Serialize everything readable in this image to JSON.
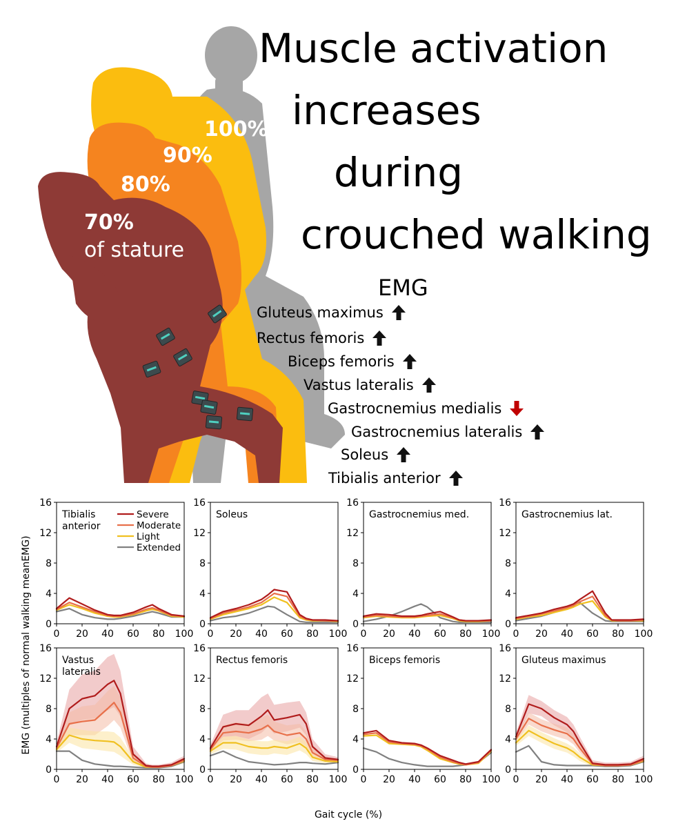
{
  "title": {
    "lines": [
      "Muscle activation",
      "increases",
      "during",
      "crouched walking"
    ]
  },
  "statures": [
    {
      "pct": "100%"
    },
    {
      "pct": "90%"
    },
    {
      "pct": "80%"
    },
    {
      "pct": "70%",
      "sub": "of stature"
    }
  ],
  "emg_panel": {
    "heading": "EMG",
    "muscles": [
      {
        "name": "Gluteus maximus",
        "direction": "up"
      },
      {
        "name": "Rectus femoris",
        "direction": "up"
      },
      {
        "name": "Biceps femoris",
        "direction": "up"
      },
      {
        "name": "Vastus lateralis",
        "direction": "up"
      },
      {
        "name": "Gastrocnemius medialis",
        "direction": "down"
      },
      {
        "name": "Gastrocnemius lateralis",
        "direction": "up"
      },
      {
        "name": "Soleus",
        "direction": "up"
      },
      {
        "name": "Tibialis anterior",
        "direction": "up"
      }
    ]
  },
  "colors": {
    "severe": "#b01c1c",
    "moderate": "#e8704a",
    "light": "#f0c020",
    "extended": "#808080",
    "silhouette_100": "#a6a6a6",
    "silhouette_90": "#fbbd0f",
    "silhouette_80": "#f5841f",
    "silhouette_70": "#8e3a36",
    "arrow_up": "#111111",
    "arrow_down": "#c00000"
  },
  "chart_data": {
    "type": "line",
    "xlabel": "Gait cycle (%)",
    "ylabel": "EMG (multiples of normal walking meanEMG)",
    "xlim": [
      0,
      100
    ],
    "ylim": [
      0,
      16
    ],
    "xticks": [
      "0",
      "20",
      "40",
      "60",
      "80",
      "100"
    ],
    "yticks": [
      "0",
      "4",
      "8",
      "12",
      "16"
    ],
    "legend": [
      "Severe",
      "Moderate",
      "Light",
      "Extended"
    ],
    "x": [
      0,
      10,
      20,
      30,
      40,
      45,
      50,
      60,
      70,
      75,
      80,
      90,
      100
    ],
    "panels": [
      {
        "title": "Tibialis anterior",
        "title_lines": [
          "Tibialis",
          "anterior"
        ],
        "series": [
          {
            "name": "Severe",
            "values": [
              2.0,
              3.4,
              2.6,
              1.8,
              1.2,
              1.1,
              1.1,
              1.5,
              2.2,
              2.5,
              2.0,
              1.2,
              1.0
            ]
          },
          {
            "name": "Moderate",
            "values": [
              1.9,
              2.8,
              2.2,
              1.6,
              1.1,
              1.0,
              1.0,
              1.3,
              1.9,
              2.1,
              1.8,
              1.1,
              1.0
            ]
          },
          {
            "name": "Light",
            "values": [
              1.8,
              2.5,
              2.0,
              1.4,
              1.0,
              0.9,
              0.9,
              1.2,
              1.7,
              1.9,
              1.7,
              1.0,
              0.9
            ]
          },
          {
            "name": "Extended",
            "values": [
              1.6,
              2.0,
              1.2,
              0.8,
              0.6,
              0.6,
              0.7,
              1.0,
              1.4,
              1.6,
              1.4,
              0.9,
              0.9
            ]
          }
        ]
      },
      {
        "title": "Soleus",
        "title_lines": [
          "Soleus"
        ],
        "series": [
          {
            "name": "Severe",
            "values": [
              0.8,
              1.6,
              2.0,
              2.5,
              3.2,
              3.8,
              4.5,
              4.2,
              1.2,
              0.7,
              0.5,
              0.5,
              0.4
            ]
          },
          {
            "name": "Moderate",
            "values": [
              0.7,
              1.4,
              1.8,
              2.2,
              2.8,
              3.4,
              4.0,
              3.6,
              1.0,
              0.6,
              0.5,
              0.4,
              0.4
            ]
          },
          {
            "name": "Light",
            "values": [
              0.6,
              1.2,
              1.6,
              2.0,
              2.5,
              3.0,
              3.5,
              2.8,
              0.8,
              0.5,
              0.4,
              0.4,
              0.3
            ]
          },
          {
            "name": "Extended",
            "values": [
              0.4,
              0.8,
              1.0,
              1.4,
              2.0,
              2.3,
              2.2,
              1.2,
              0.3,
              0.2,
              0.2,
              0.2,
              0.2
            ]
          }
        ]
      },
      {
        "title": "Gastrocnemius med.",
        "title_lines": [
          "Gastrocnemius med."
        ],
        "series": [
          {
            "name": "Severe",
            "values": [
              1.0,
              1.3,
              1.2,
              1.0,
              1.0,
              1.1,
              1.3,
              1.6,
              0.9,
              0.5,
              0.4,
              0.4,
              0.5
            ]
          },
          {
            "name": "Moderate",
            "values": [
              0.9,
              1.1,
              1.0,
              0.9,
              0.9,
              1.0,
              1.1,
              1.3,
              0.8,
              0.5,
              0.4,
              0.4,
              0.4
            ]
          },
          {
            "name": "Light",
            "values": [
              0.8,
              1.0,
              0.9,
              0.8,
              0.8,
              0.9,
              1.0,
              1.1,
              0.7,
              0.4,
              0.3,
              0.3,
              0.4
            ]
          },
          {
            "name": "Extended",
            "values": [
              0.3,
              0.6,
              1.0,
              1.6,
              2.3,
              2.6,
              2.2,
              0.8,
              0.3,
              0.2,
              0.2,
              0.2,
              0.2
            ]
          }
        ]
      },
      {
        "title": "Gastrocnemius lat.",
        "title_lines": [
          "Gastrocnemius lat."
        ],
        "series": [
          {
            "name": "Severe",
            "values": [
              0.8,
              1.1,
              1.4,
              1.9,
              2.3,
              2.6,
              3.2,
              4.3,
              1.4,
              0.5,
              0.5,
              0.5,
              0.6
            ]
          },
          {
            "name": "Moderate",
            "values": [
              0.7,
              1.0,
              1.3,
              1.7,
              2.1,
              2.4,
              2.9,
              3.6,
              1.1,
              0.5,
              0.4,
              0.4,
              0.5
            ]
          },
          {
            "name": "Light",
            "values": [
              0.6,
              0.9,
              1.1,
              1.5,
              1.9,
              2.2,
              2.6,
              3.0,
              0.9,
              0.4,
              0.4,
              0.4,
              0.4
            ]
          },
          {
            "name": "Extended",
            "values": [
              0.4,
              0.7,
              1.0,
              1.5,
              2.2,
              2.6,
              2.8,
              1.4,
              0.4,
              0.3,
              0.3,
              0.3,
              0.3
            ]
          }
        ]
      },
      {
        "title": "Vastus lateralis",
        "title_lines": [
          "Vastus",
          "lateralis"
        ],
        "series": [
          {
            "name": "Severe",
            "values": [
              3.0,
              8.0,
              9.3,
              9.7,
              11.2,
              11.7,
              10.0,
              2.0,
              0.5,
              0.4,
              0.4,
              0.6,
              1.4
            ]
          },
          {
            "name": "Moderate",
            "values": [
              2.8,
              6.0,
              6.3,
              6.5,
              8.0,
              8.8,
              7.5,
              1.5,
              0.4,
              0.3,
              0.3,
              0.5,
              1.2
            ]
          },
          {
            "name": "Light",
            "values": [
              2.6,
              4.5,
              4.0,
              3.8,
              3.7,
              3.6,
              3.0,
              1.0,
              0.3,
              0.3,
              0.3,
              0.5,
              1.1
            ]
          },
          {
            "name": "Extended",
            "values": [
              2.4,
              2.4,
              1.2,
              0.7,
              0.5,
              0.4,
              0.4,
              0.3,
              0.2,
              0.2,
              0.2,
              0.4,
              1.0
            ]
          }
        ],
        "bands": [
          {
            "name": "Severe",
            "upper": [
              3.5,
              10.5,
              12.5,
              13.0,
              14.8,
              15.2,
              13.0,
              3.0,
              0.8,
              0.6,
              0.6,
              0.9,
              1.8
            ],
            "lower": [
              2.6,
              5.8,
              6.5,
              6.7,
              7.8,
              8.2,
              7.0,
              1.0,
              0.3,
              0.2,
              0.2,
              0.4,
              1.0
            ]
          },
          {
            "name": "Moderate",
            "upper": [
              3.2,
              7.5,
              8.3,
              8.5,
              10.3,
              11.0,
              9.5,
              2.2,
              0.6,
              0.5,
              0.5,
              0.7,
              1.5
            ],
            "lower": [
              2.4,
              4.5,
              4.5,
              4.5,
              5.7,
              6.5,
              5.5,
              0.9,
              0.2,
              0.2,
              0.2,
              0.3,
              0.9
            ]
          },
          {
            "name": "Light",
            "upper": [
              3.0,
              5.5,
              5.2,
              5.0,
              5.0,
              4.9,
              4.2,
              1.5,
              0.5,
              0.4,
              0.4,
              0.6,
              1.3
            ],
            "lower": [
              2.2,
              3.5,
              2.8,
              2.6,
              2.4,
              2.3,
              1.8,
              0.6,
              0.2,
              0.2,
              0.2,
              0.3,
              0.8
            ]
          }
        ]
      },
      {
        "title": "Rectus femoris",
        "title_lines": [
          "Rectus femoris"
        ],
        "series": [
          {
            "name": "Severe",
            "values": [
              2.8,
              5.6,
              6.0,
              5.8,
              7.0,
              7.8,
              6.5,
              6.8,
              7.2,
              6.0,
              3.0,
              1.5,
              1.3
            ]
          },
          {
            "name": "Moderate",
            "values": [
              2.6,
              4.8,
              5.0,
              4.8,
              5.3,
              5.8,
              5.0,
              4.5,
              4.8,
              4.0,
              2.2,
              1.3,
              1.2
            ]
          },
          {
            "name": "Light",
            "values": [
              2.4,
              3.5,
              3.5,
              3.0,
              2.8,
              2.8,
              3.0,
              2.8,
              3.4,
              2.8,
              1.6,
              1.1,
              1.0
            ]
          },
          {
            "name": "Extended",
            "values": [
              1.8,
              2.4,
              1.6,
              1.0,
              0.8,
              0.7,
              0.6,
              0.7,
              0.9,
              0.9,
              0.8,
              0.7,
              0.9
            ]
          }
        ],
        "bands": [
          {
            "name": "Severe",
            "upper": [
              3.2,
              7.2,
              7.8,
              7.8,
              9.5,
              10.0,
              8.5,
              8.8,
              9.0,
              7.5,
              4.0,
              2.0,
              1.6
            ],
            "lower": [
              2.4,
              4.3,
              4.4,
              4.0,
              4.8,
              5.6,
              4.7,
              5.0,
              5.5,
              4.5,
              2.1,
              1.1,
              1.0
            ]
          },
          {
            "name": "Moderate",
            "upper": [
              3.0,
              5.8,
              6.2,
              6.0,
              6.8,
              7.2,
              6.3,
              5.8,
              6.0,
              5.0,
              2.8,
              1.6,
              1.4
            ],
            "lower": [
              2.2,
              3.8,
              3.9,
              3.7,
              3.9,
              4.4,
              3.8,
              3.3,
              3.6,
              3.0,
              1.6,
              1.0,
              1.0
            ]
          },
          {
            "name": "Light",
            "upper": [
              2.8,
              4.3,
              4.4,
              3.9,
              3.7,
              3.7,
              3.9,
              3.7,
              4.3,
              3.6,
              2.1,
              1.4,
              1.2
            ],
            "lower": [
              2.0,
              2.7,
              2.6,
              2.1,
              1.9,
              1.9,
              2.1,
              1.9,
              2.5,
              2.0,
              1.1,
              0.8,
              0.8
            ]
          }
        ]
      },
      {
        "title": "Biceps femoris",
        "title_lines": [
          "Biceps femoris"
        ],
        "series": [
          {
            "name": "Severe",
            "values": [
              4.8,
              5.1,
              3.8,
              3.5,
              3.4,
              3.2,
              2.8,
              1.8,
              1.2,
              0.9,
              0.7,
              1.0,
              2.6
            ]
          },
          {
            "name": "Moderate",
            "values": [
              4.6,
              4.8,
              3.6,
              3.4,
              3.3,
              3.1,
              2.7,
              1.6,
              1.0,
              0.8,
              0.6,
              0.9,
              2.5
            ]
          },
          {
            "name": "Light",
            "values": [
              4.4,
              4.5,
              3.4,
              3.3,
              3.2,
              3.0,
              2.5,
              1.4,
              0.9,
              0.7,
              0.6,
              0.8,
              2.4
            ]
          },
          {
            "name": "Extended",
            "values": [
              2.8,
              2.3,
              1.4,
              0.9,
              0.6,
              0.5,
              0.4,
              0.4,
              0.4,
              0.5,
              0.6,
              0.9,
              2.2
            ]
          }
        ]
      },
      {
        "title": "Gluteus maximus",
        "title_lines": [
          "Gluteus maximus"
        ],
        "series": [
          {
            "name": "Severe",
            "values": [
              4.3,
              8.6,
              8.0,
              6.8,
              5.9,
              5.0,
              3.5,
              0.8,
              0.6,
              0.6,
              0.6,
              0.7,
              1.4
            ]
          },
          {
            "name": "Moderate",
            "values": [
              4.0,
              6.7,
              5.8,
              5.2,
              4.7,
              4.0,
              2.8,
              0.7,
              0.5,
              0.5,
              0.5,
              0.6,
              1.2
            ]
          },
          {
            "name": "Light",
            "values": [
              3.5,
              5.1,
              4.2,
              3.4,
              2.8,
              2.3,
              1.6,
              0.6,
              0.5,
              0.5,
              0.5,
              0.6,
              1.1
            ]
          },
          {
            "name": "Extended",
            "values": [
              2.3,
              3.1,
              1.0,
              0.6,
              0.5,
              0.5,
              0.5,
              0.5,
              0.4,
              0.4,
              0.4,
              0.5,
              1.0
            ]
          }
        ],
        "bands": [
          {
            "name": "Severe",
            "upper": [
              4.8,
              9.8,
              9.0,
              7.8,
              6.9,
              5.9,
              4.3,
              1.2,
              0.9,
              0.9,
              0.9,
              1.0,
              1.8
            ],
            "lower": [
              3.8,
              7.4,
              7.0,
              5.8,
              4.9,
              4.1,
              2.7,
              0.5,
              0.4,
              0.4,
              0.4,
              0.5,
              1.1
            ]
          },
          {
            "name": "Moderate",
            "upper": [
              4.4,
              7.5,
              6.6,
              6.0,
              5.5,
              4.7,
              3.4,
              1.0,
              0.7,
              0.7,
              0.7,
              0.8,
              1.4
            ],
            "lower": [
              3.6,
              5.9,
              5.0,
              4.4,
              3.9,
              3.3,
              2.2,
              0.5,
              0.3,
              0.3,
              0.3,
              0.4,
              1.0
            ]
          },
          {
            "name": "Light",
            "upper": [
              3.9,
              5.8,
              4.9,
              4.1,
              3.4,
              2.9,
              2.1,
              0.8,
              0.7,
              0.7,
              0.7,
              0.8,
              1.3
            ],
            "lower": [
              3.1,
              4.4,
              3.5,
              2.7,
              2.2,
              1.7,
              1.1,
              0.4,
              0.3,
              0.3,
              0.3,
              0.4,
              0.9
            ]
          }
        ]
      }
    ]
  }
}
